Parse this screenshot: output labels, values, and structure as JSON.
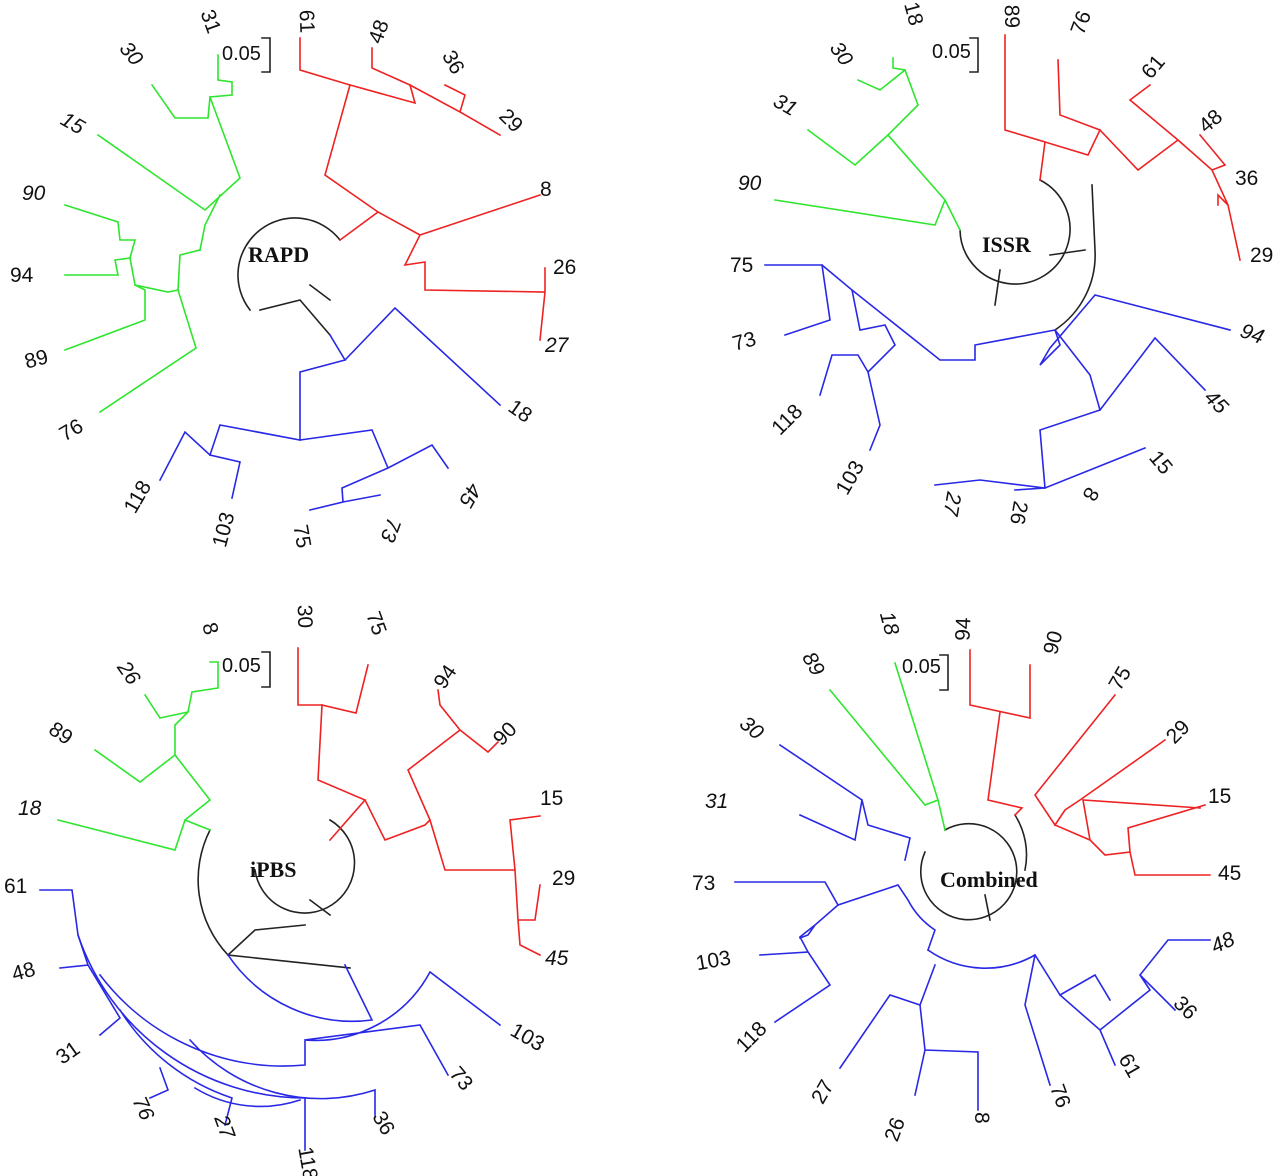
{
  "figure": {
    "scale_bar_label": "0.05",
    "colors": {
      "green": "#2ee62e",
      "red": "#ee2222",
      "blue": "#2828e6",
      "black": "#222222"
    },
    "panels": [
      {
        "method": "RAPD",
        "leaves": [
          {
            "label": "31",
            "color": "green"
          },
          {
            "label": "30",
            "color": "green"
          },
          {
            "label": "15",
            "color": "green"
          },
          {
            "label": "90",
            "color": "green"
          },
          {
            "label": "94",
            "color": "green"
          },
          {
            "label": "89",
            "color": "green"
          },
          {
            "label": "76",
            "color": "green"
          },
          {
            "label": "61",
            "color": "red"
          },
          {
            "label": "48",
            "color": "red"
          },
          {
            "label": "36",
            "color": "red"
          },
          {
            "label": "29",
            "color": "red"
          },
          {
            "label": "8",
            "color": "red"
          },
          {
            "label": "26",
            "color": "red"
          },
          {
            "label": "27",
            "color": "red"
          },
          {
            "label": "18",
            "color": "blue"
          },
          {
            "label": "118",
            "color": "blue"
          },
          {
            "label": "103",
            "color": "blue"
          },
          {
            "label": "75",
            "color": "blue"
          },
          {
            "label": "73",
            "color": "blue"
          },
          {
            "label": "45",
            "color": "blue"
          }
        ]
      },
      {
        "method": "ISSR",
        "leaves": [
          {
            "label": "18",
            "color": "green"
          },
          {
            "label": "30",
            "color": "green"
          },
          {
            "label": "31",
            "color": "green"
          },
          {
            "label": "90",
            "color": "green"
          },
          {
            "label": "89",
            "color": "red"
          },
          {
            "label": "76",
            "color": "red"
          },
          {
            "label": "61",
            "color": "red"
          },
          {
            "label": "48",
            "color": "red"
          },
          {
            "label": "36",
            "color": "red"
          },
          {
            "label": "29",
            "color": "red"
          },
          {
            "label": "75",
            "color": "blue"
          },
          {
            "label": "73",
            "color": "blue"
          },
          {
            "label": "118",
            "color": "blue"
          },
          {
            "label": "103",
            "color": "blue"
          },
          {
            "label": "94",
            "color": "blue"
          },
          {
            "label": "45",
            "color": "blue"
          },
          {
            "label": "15",
            "color": "blue"
          },
          {
            "label": "8",
            "color": "blue"
          },
          {
            "label": "26",
            "color": "blue"
          },
          {
            "label": "27",
            "color": "blue"
          }
        ]
      },
      {
        "method": "iPBS",
        "leaves": [
          {
            "label": "8",
            "color": "green"
          },
          {
            "label": "26",
            "color": "green"
          },
          {
            "label": "89",
            "color": "green"
          },
          {
            "label": "18",
            "color": "green"
          },
          {
            "label": "30",
            "color": "red"
          },
          {
            "label": "75",
            "color": "red"
          },
          {
            "label": "94",
            "color": "red"
          },
          {
            "label": "90",
            "color": "red"
          },
          {
            "label": "15",
            "color": "red"
          },
          {
            "label": "29",
            "color": "red"
          },
          {
            "label": "45",
            "color": "red"
          },
          {
            "label": "61",
            "color": "blue"
          },
          {
            "label": "48",
            "color": "blue"
          },
          {
            "label": "31",
            "color": "blue"
          },
          {
            "label": "76",
            "color": "blue"
          },
          {
            "label": "27",
            "color": "blue"
          },
          {
            "label": "118",
            "color": "blue"
          },
          {
            "label": "36",
            "color": "blue"
          },
          {
            "label": "73",
            "color": "blue"
          },
          {
            "label": "103",
            "color": "blue"
          }
        ]
      },
      {
        "method": "Combined",
        "leaves": [
          {
            "label": "18",
            "color": "green"
          },
          {
            "label": "89",
            "color": "green"
          },
          {
            "label": "94",
            "color": "red"
          },
          {
            "label": "90",
            "color": "red"
          },
          {
            "label": "75",
            "color": "red"
          },
          {
            "label": "29",
            "color": "red"
          },
          {
            "label": "15",
            "color": "red"
          },
          {
            "label": "45",
            "color": "red"
          },
          {
            "label": "30",
            "color": "blue"
          },
          {
            "label": "31",
            "color": "blue"
          },
          {
            "label": "73",
            "color": "blue"
          },
          {
            "label": "103",
            "color": "blue"
          },
          {
            "label": "118",
            "color": "blue"
          },
          {
            "label": "27",
            "color": "blue"
          },
          {
            "label": "26",
            "color": "blue"
          },
          {
            "label": "8",
            "color": "blue"
          },
          {
            "label": "76",
            "color": "blue"
          },
          {
            "label": "61",
            "color": "blue"
          },
          {
            "label": "36",
            "color": "blue"
          },
          {
            "label": "48",
            "color": "blue"
          }
        ]
      }
    ]
  }
}
